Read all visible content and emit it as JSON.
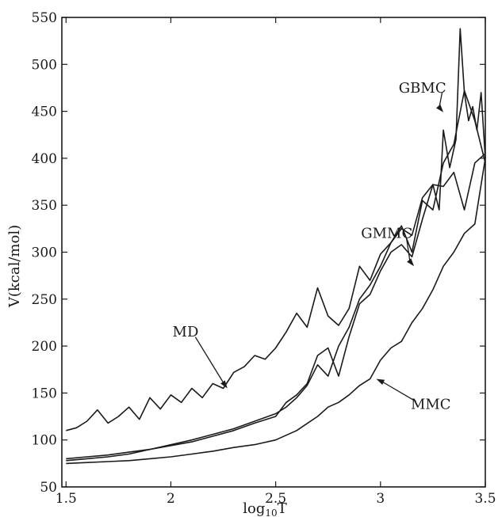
{
  "chart_data": {
    "type": "line",
    "title": "",
    "xlabel": "log",
    "xlabel_sub": "10",
    "xlabel_tail": "T",
    "ylabel": "V(kcal/mol)",
    "xlim": [
      1.48,
      3.5
    ],
    "ylim": [
      50,
      550
    ],
    "xticks": [
      1.5,
      2,
      2.5,
      3,
      3.5
    ],
    "xtick_labels": [
      "1.5",
      "2",
      "2.5",
      "3",
      "3.5"
    ],
    "yticks": [
      50,
      100,
      150,
      200,
      250,
      300,
      350,
      400,
      450,
      500,
      550
    ],
    "ytick_labels": [
      "50",
      "100",
      "150",
      "200",
      "250",
      "300",
      "350",
      "400",
      "450",
      "500",
      "550"
    ],
    "grid": false,
    "legend": "none",
    "series": [
      {
        "name": "MD",
        "x": [
          1.5,
          1.55,
          1.6,
          1.65,
          1.7,
          1.75,
          1.8,
          1.85,
          1.9,
          1.95,
          2.0,
          2.05,
          2.1,
          2.15,
          2.2,
          2.25,
          2.3,
          2.35,
          2.4,
          2.45,
          2.5,
          2.55,
          2.6,
          2.65,
          2.7,
          2.75,
          2.8,
          2.85,
          2.9,
          2.95,
          3.0,
          3.05,
          3.1,
          3.15,
          3.2,
          3.25,
          3.3,
          3.35,
          3.4,
          3.45,
          3.5
        ],
        "values": [
          110,
          113,
          120,
          132,
          118,
          125,
          135,
          122,
          145,
          133,
          148,
          140,
          155,
          145,
          160,
          155,
          172,
          178,
          190,
          186,
          198,
          215,
          235,
          220,
          262,
          232,
          222,
          240,
          285,
          270,
          298,
          310,
          325,
          318,
          358,
          372,
          370,
          385,
          345,
          395,
          405
        ]
      },
      {
        "name": "GBMC",
        "x": [
          1.5,
          1.6,
          1.7,
          1.8,
          1.9,
          2.0,
          2.1,
          2.2,
          2.3,
          2.4,
          2.5,
          2.55,
          2.6,
          2.65,
          2.7,
          2.75,
          2.8,
          2.85,
          2.9,
          2.95,
          3.0,
          3.05,
          3.1,
          3.15,
          3.2,
          3.25,
          3.28,
          3.3,
          3.33,
          3.36,
          3.38,
          3.4,
          3.42,
          3.44,
          3.46,
          3.48,
          3.5
        ],
        "values": [
          78,
          80,
          82,
          85,
          90,
          94,
          98,
          104,
          110,
          118,
          125,
          140,
          148,
          160,
          190,
          198,
          168,
          210,
          245,
          255,
          280,
          300,
          308,
          295,
          335,
          372,
          345,
          430,
          390,
          420,
          538,
          470,
          440,
          455,
          430,
          470,
          400
        ]
      },
      {
        "name": "GMMC",
        "x": [
          1.5,
          1.6,
          1.7,
          1.8,
          1.9,
          2.0,
          2.1,
          2.2,
          2.3,
          2.4,
          2.5,
          2.55,
          2.6,
          2.65,
          2.7,
          2.75,
          2.8,
          2.85,
          2.9,
          2.95,
          3.0,
          3.05,
          3.1,
          3.15,
          3.2,
          3.25,
          3.3,
          3.35,
          3.4,
          3.45,
          3.5
        ],
        "values": [
          80,
          82,
          84,
          87,
          90,
          95,
          100,
          106,
          112,
          120,
          128,
          135,
          145,
          158,
          180,
          168,
          200,
          220,
          250,
          265,
          285,
          310,
          328,
          300,
          355,
          345,
          395,
          415,
          472,
          440,
          395
        ]
      },
      {
        "name": "MMC",
        "x": [
          1.5,
          1.6,
          1.7,
          1.8,
          1.9,
          2.0,
          2.1,
          2.2,
          2.3,
          2.4,
          2.5,
          2.6,
          2.7,
          2.75,
          2.8,
          2.85,
          2.9,
          2.95,
          3.0,
          3.05,
          3.1,
          3.15,
          3.2,
          3.25,
          3.3,
          3.35,
          3.4,
          3.45,
          3.5
        ],
        "values": [
          75,
          76,
          77,
          78,
          80,
          82,
          85,
          88,
          92,
          95,
          100,
          110,
          125,
          135,
          140,
          148,
          158,
          165,
          185,
          198,
          205,
          225,
          240,
          260,
          285,
          300,
          320,
          330,
          400
        ]
      }
    ],
    "annotations": [
      {
        "label": "GBMC",
        "text_at": [
          3.2,
          470
        ],
        "arrow_to": [
          3.3,
          449
        ]
      },
      {
        "label": "GMMC",
        "text_at": [
          3.03,
          315
        ],
        "arrow_to": [
          3.16,
          285
        ]
      },
      {
        "label": "MD",
        "text_at": [
          2.07,
          210
        ],
        "arrow_to": [
          2.27,
          155
        ]
      },
      {
        "label": "MMC",
        "text_at": [
          3.24,
          133
        ],
        "arrow_to": [
          2.98,
          165
        ]
      }
    ]
  }
}
